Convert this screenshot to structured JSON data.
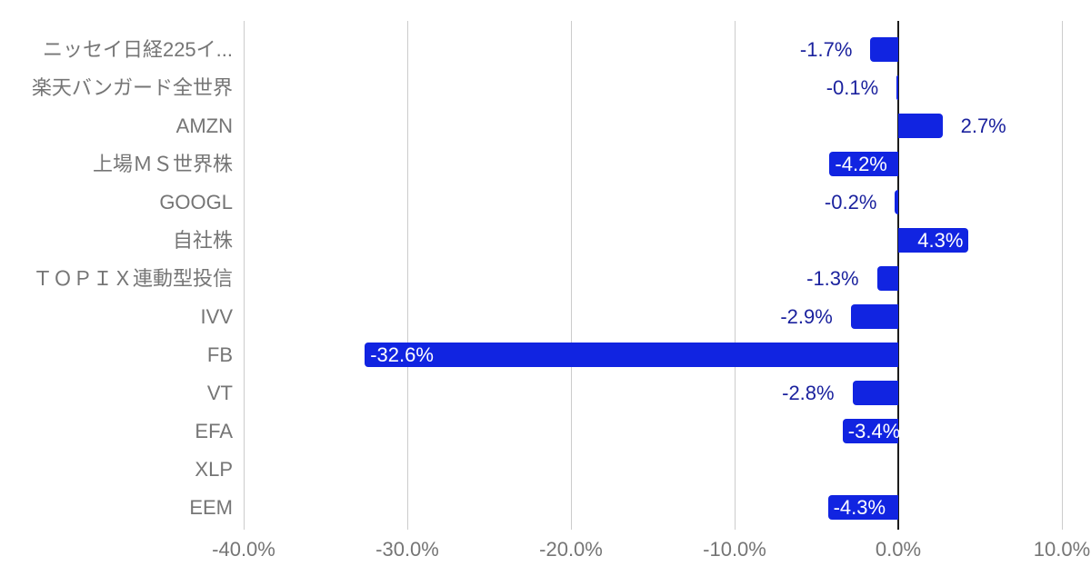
{
  "chart_data": {
    "type": "bar",
    "orientation": "horizontal",
    "title": "",
    "xlabel": "",
    "ylabel": "",
    "xlim": [
      -40,
      10
    ],
    "grid": true,
    "categories": [
      "ニッセイ日経225イ...",
      "楽天バンガード全世界",
      "AMZN",
      "上場ＭＳ世界株",
      "GOOGL",
      "自社株",
      "ＴＯＰＩＸ連動型投信",
      "IVV",
      "FB",
      "VT",
      "EFA",
      "XLP",
      "EEM"
    ],
    "values": [
      -1.7,
      -0.1,
      2.7,
      -4.2,
      -0.2,
      4.3,
      -1.3,
      -2.9,
      -32.6,
      -2.8,
      -3.4,
      0.0,
      -4.3
    ],
    "annotations": [
      "-1.7%",
      "-0.1%",
      "2.7%",
      "-4.2%",
      "-0.2%",
      "4.3%",
      "-1.3%",
      "-2.9%",
      "-32.6%",
      "-2.8%",
      "-3.4%",
      null,
      "-4.3%"
    ],
    "annotation_placement": [
      "outside",
      "outside",
      "outside",
      "inside",
      "outside",
      "inside",
      "outside",
      "outside",
      "inside",
      "outside",
      "inside",
      "none",
      "inside"
    ],
    "x_ticks": [
      "-40.0%",
      "-30.0%",
      "-20.0%",
      "-10.0%",
      "0.0%",
      "10.0%"
    ],
    "x_tick_values": [
      -40,
      -30,
      -20,
      -10,
      0,
      10
    ],
    "legend": "none",
    "colors": {
      "bar": "#1124e1",
      "annotation_outside": "#1b229e",
      "annotation_inside": "#ffffff",
      "category_label": "#757575",
      "axis_label": "#757575",
      "gridline": "#cccccc",
      "zero_line": "#1c1c1c",
      "background": "#ffffff"
    }
  }
}
